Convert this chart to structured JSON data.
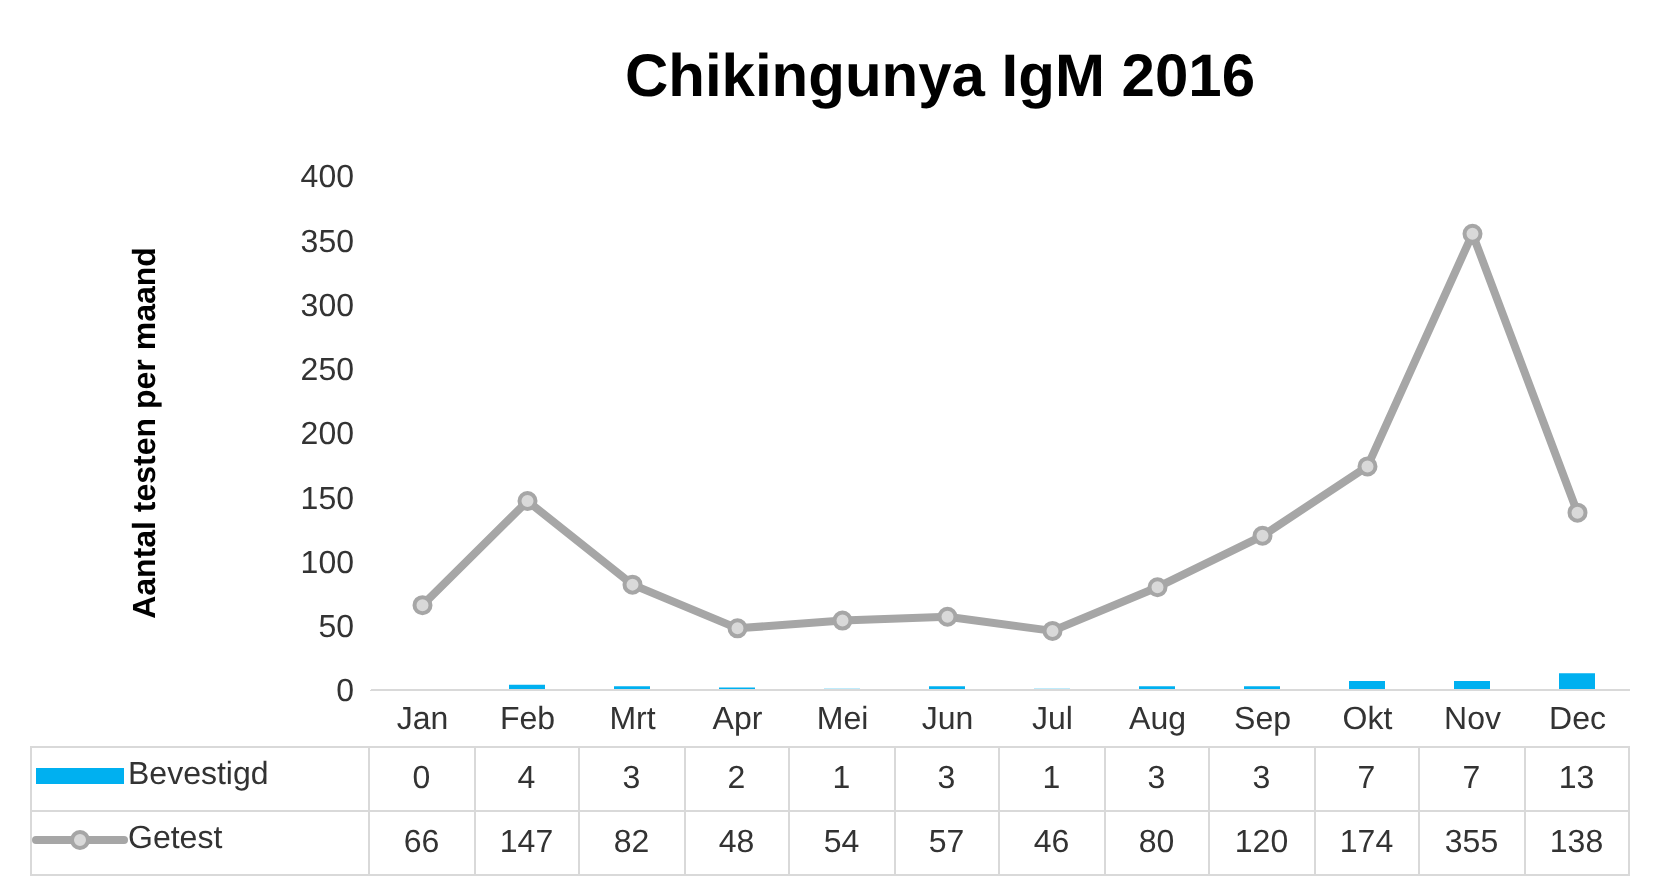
{
  "chart_data": {
    "type": "bar",
    "title": "Chikingunya IgM 2016",
    "ylabel": "Aantal testen  per maand",
    "categories": [
      "Jan",
      "Feb",
      "Mrt",
      "Apr",
      "Mei",
      "Jun",
      "Jul",
      "Aug",
      "Sep",
      "Okt",
      "Nov",
      "Dec"
    ],
    "series": [
      {
        "name": "Bevestigd",
        "color": "#00b0f0",
        "values": [
          0,
          4,
          3,
          2,
          1,
          3,
          1,
          3,
          3,
          7,
          7,
          13
        ]
      },
      {
        "name": "Getest",
        "type": "line",
        "color": "#a6a6a6",
        "values": [
          66,
          147,
          82,
          48,
          54,
          57,
          46,
          80,
          120,
          174,
          355,
          138
        ]
      }
    ],
    "ylim": [
      0,
      400
    ],
    "yticks": [
      0,
      50,
      100,
      150,
      200,
      250,
      300,
      350,
      400
    ],
    "marker": "circle",
    "data_labels": true,
    "legend": "bottom"
  }
}
